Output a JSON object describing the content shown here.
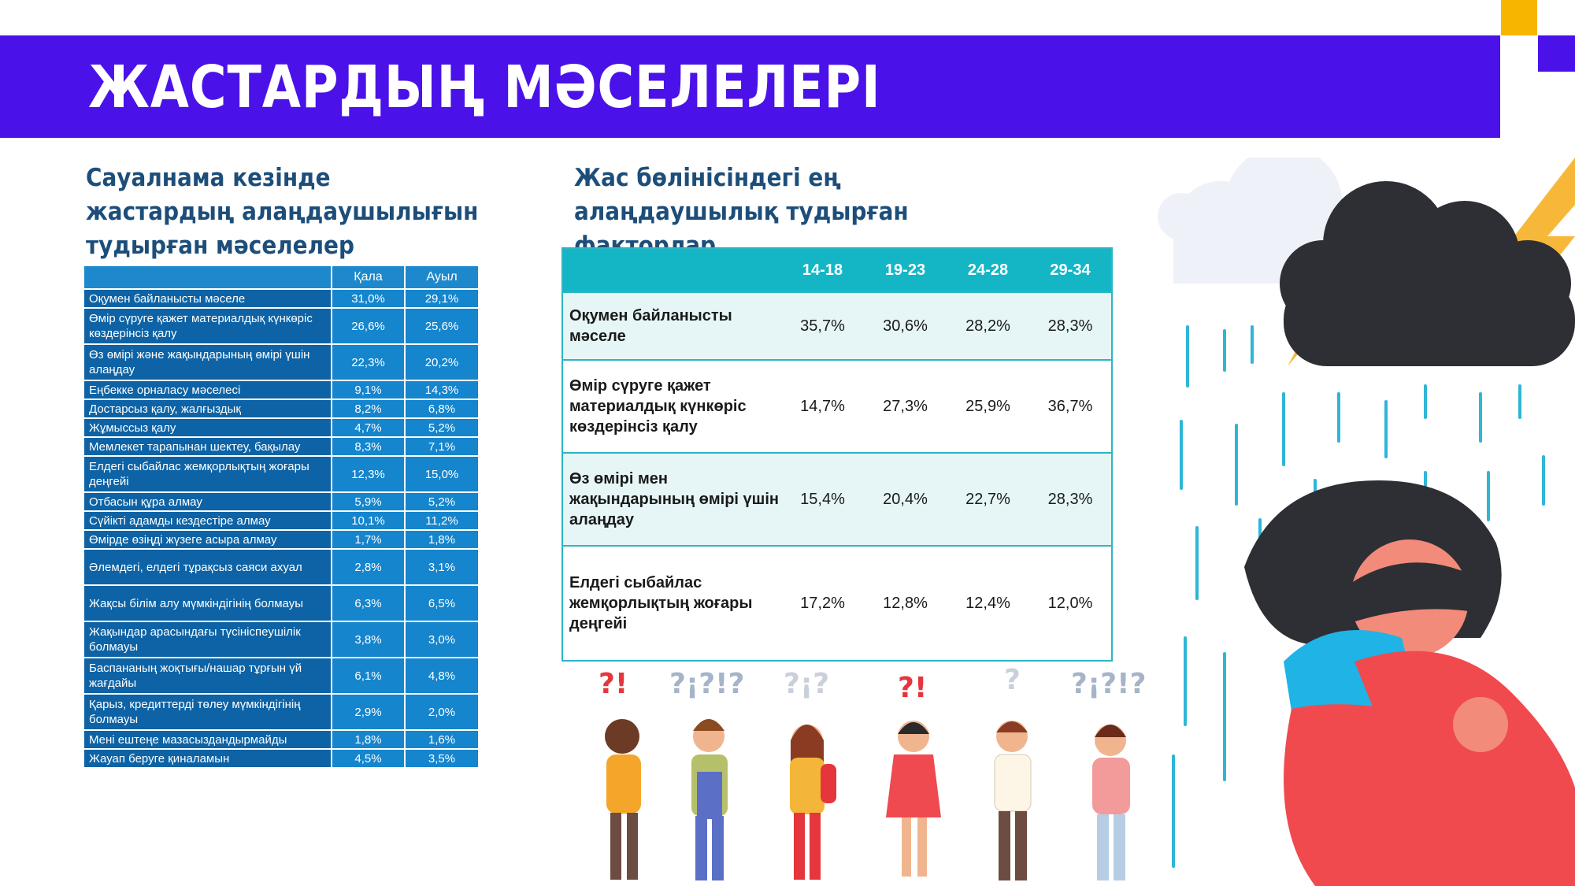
{
  "title": "ЖАСТАРДЫҢ МӘСЕЛЕЛЕРІ",
  "left_section": {
    "heading": "Сауалнама кезінде жастардың алаңдаушылығын тудырған мәселелер",
    "columns": [
      "",
      "Қала",
      "Ауыл"
    ],
    "rows": [
      {
        "label": "Оқумен байланысты мәселе",
        "city": "31,0%",
        "village": "29,1%"
      },
      {
        "label": "Өмір сүруге қажет материалдық күнкөріс көздерінсіз қалу",
        "city": "26,6%",
        "village": "25,6%"
      },
      {
        "label": "Өз өмірі және жақындарының өмірі үшін алаңдау",
        "city": "22,3%",
        "village": "20,2%"
      },
      {
        "label": "Еңбекке орналасу мәселесі",
        "city": "9,1%",
        "village": "14,3%"
      },
      {
        "label": "Достарсыз қалу, жалғыздық",
        "city": "8,2%",
        "village": "6,8%"
      },
      {
        "label": "Жұмыссыз қалу",
        "city": "4,7%",
        "village": "5,2%"
      },
      {
        "label": "Мемлекет тарапынан шектеу, бақылау",
        "city": "8,3%",
        "village": "7,1%"
      },
      {
        "label": "Елдегі сыбайлас жемқорлықтың жоғары деңгейі",
        "city": "12,3%",
        "village": "15,0%"
      },
      {
        "label": "Отбасын құра алмау",
        "city": "5,9%",
        "village": "5,2%"
      },
      {
        "label": "Сүйікті адамды кездестіре алмау",
        "city": "10,1%",
        "village": "11,2%"
      },
      {
        "label": "Өмірде өзіңді жүзеге асыра алмау",
        "city": "1,7%",
        "village": "1,8%"
      },
      {
        "label": "Әлемдегі, елдегі тұрақсыз саяси ахуал",
        "city": "2,8%",
        "village": "3,1%"
      },
      {
        "label": "Жақсы білім алу мүмкіндігінің болмауы",
        "city": "6,3%",
        "village": "6,5%"
      },
      {
        "label": "Жақындар арасындағы түсініспеушілік болмауы",
        "city": "3,8%",
        "village": "3,0%"
      },
      {
        "label": "Баспананың жоқтығы/нашар тұрғын үй жағдайы",
        "city": "6,1%",
        "village": "4,8%"
      },
      {
        "label": "Қарыз, кредиттерді төлеу мүмкіндігінің болмауы",
        "city": "2,9%",
        "village": "2,0%"
      },
      {
        "label": "Мені ештеңе мазасыздандырмайды",
        "city": "1,8%",
        "village": "1,6%"
      },
      {
        "label": "Жауап беруге қиналамын",
        "city": "4,5%",
        "village": "3,5%"
      }
    ]
  },
  "right_section": {
    "heading": "Жас бөлінісіндегі ең алаңдаушылық тудырған факторлар",
    "columns": [
      "",
      "14-18",
      "19-23",
      "24-28",
      "29-34"
    ],
    "rows": [
      {
        "label": "Оқумен байланысты мәселе",
        "values": [
          "35,7%",
          "30,6%",
          "28,2%",
          "28,3%"
        ]
      },
      {
        "label": "Өмір сүруге қажет материалдық күнкөріс көздерінсіз қалу",
        "values": [
          "14,7%",
          "27,3%",
          "25,9%",
          "36,7%"
        ]
      },
      {
        "label": "Өз өмірі мен жақындарының өмірі үшін алаңдау",
        "values": [
          "15,4%",
          "20,4%",
          "22,7%",
          "28,3%"
        ]
      },
      {
        "label": "Елдегі сыбайлас жемқорлықтың жоғары деңгейі",
        "values": [
          "17,2%",
          "12,8%",
          "12,4%",
          "12,0%"
        ]
      }
    ]
  },
  "illustration_marks": [
    "?!",
    "?¡?!?",
    "?¡?",
    "?!",
    "?",
    "?¡?!?"
  ],
  "colors": {
    "brand": "#4a12e8",
    "accent_yellow": "#f7b500",
    "table_blue": "#0d63a5",
    "teal": "#14b6c6"
  }
}
